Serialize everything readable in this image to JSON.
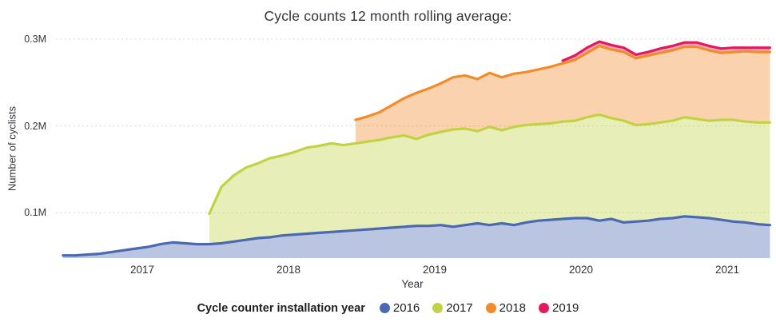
{
  "legend": {
    "title": "Cycle counter installation year"
  },
  "chart_data": {
    "type": "area",
    "stacked": true,
    "title": "Cycle counts 12 month rolling average:",
    "xlabel": "Year",
    "ylabel": "Number of cyclists",
    "values_unit": "millions of cyclists (12 month rolling average)",
    "grid": "horizontal-dotted",
    "legend_position": "bottom",
    "x_range_displayed": [
      2016.45,
      2021.3
    ],
    "y_range_displayed": [
      0.048,
      0.302
    ],
    "y_ticks": [
      {
        "value": 0.1,
        "label": "0.1M"
      },
      {
        "value": 0.2,
        "label": "0.2M"
      },
      {
        "value": 0.3,
        "label": "0.3M"
      }
    ],
    "x_ticks": [
      {
        "value": 2017,
        "label": "2017"
      },
      {
        "value": 2018,
        "label": "2018"
      },
      {
        "value": 2019,
        "label": "2019"
      },
      {
        "value": 2020,
        "label": "2020"
      },
      {
        "value": 2021,
        "label": "2021"
      }
    ],
    "x": [
      "2016-06",
      "2016-07",
      "2016-08",
      "2016-09",
      "2016-10",
      "2016-11",
      "2016-12",
      "2017-01",
      "2017-02",
      "2017-03",
      "2017-04",
      "2017-05",
      "2017-06",
      "2017-07",
      "2017-08",
      "2017-09",
      "2017-10",
      "2017-11",
      "2017-12",
      "2018-01",
      "2018-02",
      "2018-03",
      "2018-04",
      "2018-05",
      "2018-06",
      "2018-07",
      "2018-08",
      "2018-09",
      "2018-10",
      "2018-11",
      "2018-12",
      "2019-01",
      "2019-02",
      "2019-03",
      "2019-04",
      "2019-05",
      "2019-06",
      "2019-07",
      "2019-08",
      "2019-09",
      "2019-10",
      "2019-11",
      "2019-12",
      "2020-01",
      "2020-02",
      "2020-03",
      "2020-04",
      "2020-05",
      "2020-06",
      "2020-07",
      "2020-08",
      "2020-09",
      "2020-10",
      "2020-11",
      "2020-12",
      "2021-01",
      "2021-02",
      "2021-03",
      "2021-04"
    ],
    "series": [
      {
        "name": "2016",
        "color": "#4a69b1",
        "values": [
          0.051,
          0.051,
          0.052,
          0.053,
          0.055,
          0.057,
          0.059,
          0.061,
          0.064,
          0.066,
          0.065,
          0.064,
          0.064,
          0.065,
          0.067,
          0.069,
          0.071,
          0.072,
          0.074,
          0.075,
          0.076,
          0.077,
          0.078,
          0.079,
          0.08,
          0.081,
          0.082,
          0.083,
          0.084,
          0.085,
          0.085,
          0.086,
          0.084,
          0.086,
          0.088,
          0.086,
          0.088,
          0.086,
          0.089,
          0.091,
          0.092,
          0.093,
          0.094,
          0.094,
          0.091,
          0.093,
          0.089,
          0.09,
          0.091,
          0.093,
          0.094,
          0.096,
          0.095,
          0.094,
          0.092,
          0.09,
          0.089,
          0.087,
          0.086
        ]
      },
      {
        "name": "2017",
        "color": "#c3d243",
        "values": [
          null,
          null,
          null,
          null,
          null,
          null,
          null,
          null,
          null,
          null,
          null,
          null,
          0.035,
          0.065,
          0.076,
          0.083,
          0.086,
          0.091,
          0.092,
          0.095,
          0.099,
          0.1,
          0.102,
          0.099,
          0.1,
          0.101,
          0.102,
          0.104,
          0.105,
          0.1,
          0.105,
          0.107,
          0.112,
          0.111,
          0.106,
          0.113,
          0.107,
          0.113,
          0.112,
          0.111,
          0.111,
          0.112,
          0.112,
          0.116,
          0.122,
          0.116,
          0.117,
          0.111,
          0.111,
          0.111,
          0.112,
          0.114,
          0.113,
          0.112,
          0.115,
          0.117,
          0.116,
          0.117,
          0.118
        ]
      },
      {
        "name": "2018",
        "color": "#f28c2b",
        "values": [
          null,
          null,
          null,
          null,
          null,
          null,
          null,
          null,
          null,
          null,
          null,
          null,
          null,
          null,
          null,
          null,
          null,
          null,
          null,
          null,
          null,
          null,
          null,
          null,
          0.027,
          0.029,
          0.032,
          0.037,
          0.043,
          0.053,
          0.053,
          0.056,
          0.06,
          0.061,
          0.06,
          0.062,
          0.061,
          0.061,
          0.061,
          0.063,
          0.065,
          0.067,
          0.07,
          0.074,
          0.079,
          0.079,
          0.079,
          0.077,
          0.079,
          0.08,
          0.081,
          0.081,
          0.083,
          0.081,
          0.077,
          0.078,
          0.081,
          0.081,
          0.081
        ]
      },
      {
        "name": "2019",
        "color": "#e3195e",
        "values": [
          null,
          null,
          null,
          null,
          null,
          null,
          null,
          null,
          null,
          null,
          null,
          null,
          null,
          null,
          null,
          null,
          null,
          null,
          null,
          null,
          null,
          null,
          null,
          null,
          null,
          null,
          null,
          null,
          null,
          null,
          null,
          null,
          null,
          null,
          null,
          null,
          null,
          null,
          null,
          null,
          null,
          0.003,
          0.005,
          0.006,
          0.005,
          0.005,
          0.005,
          0.004,
          0.004,
          0.005,
          0.005,
          0.005,
          0.005,
          0.005,
          0.005,
          0.005,
          0.004,
          0.005,
          0.005
        ]
      }
    ]
  }
}
